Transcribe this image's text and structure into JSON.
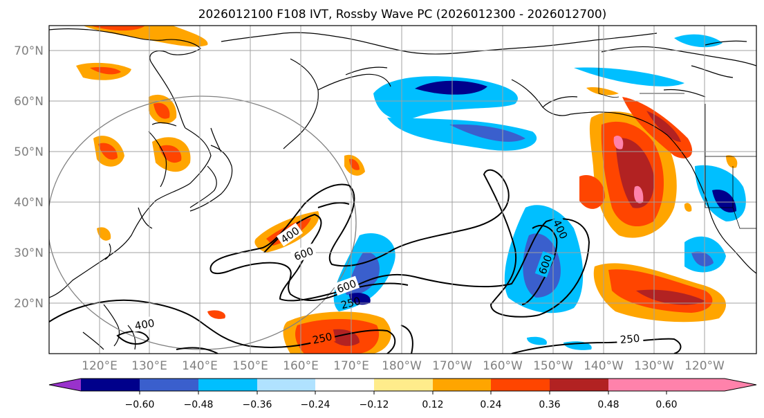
{
  "title": "2026012100 F108 IVT, Rossby Wave PC (2026012300 - 2026012700)",
  "map": {
    "latitude_labels": [
      "70°N",
      "60°N",
      "50°N",
      "40°N",
      "30°N",
      "20°N"
    ],
    "longitude_labels": [
      "120°E",
      "130°E",
      "140°E",
      "150°E",
      "160°E",
      "170°E",
      "180°W",
      "170°W",
      "160°W",
      "150°W",
      "140°W",
      "130°W",
      "120°W"
    ],
    "contour_labels": [
      "400",
      "600",
      "600",
      "250",
      "400",
      "600",
      "400",
      "250",
      "250"
    ]
  },
  "colorbar": {
    "ticks": [
      "−0.60",
      "−0.48",
      "−0.36",
      "−0.24",
      "−0.12",
      "0.12",
      "0.24",
      "0.36",
      "0.48",
      "0.60"
    ],
    "colors": [
      "#9932cc",
      "#00008b",
      "#3a5fcd",
      "#00bfff",
      "#b0e2ff",
      "#ffffff",
      "#ffec8b",
      "#ffa500",
      "#ff4500",
      "#b22222",
      "#ff82ab"
    ]
  }
}
